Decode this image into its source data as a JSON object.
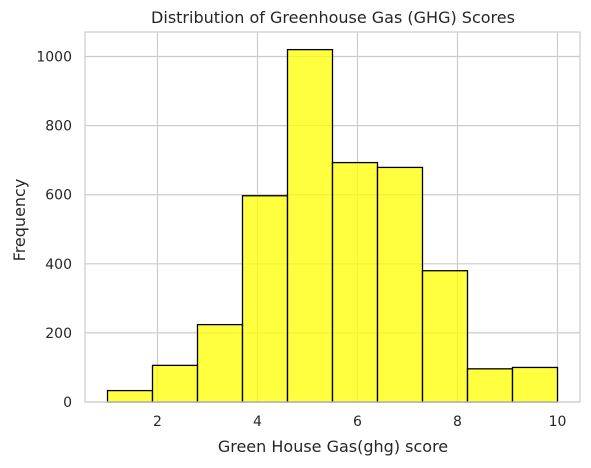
{
  "chart_data": {
    "type": "bar",
    "title": "Distribution of Greenhouse Gas (GHG) Scores",
    "xlabel": "Green House Gas(ghg) score",
    "ylabel": "Frequency",
    "bin_edges": [
      1.0,
      1.9,
      2.8,
      3.7,
      4.6,
      5.5,
      6.4,
      7.3,
      8.2,
      9.1,
      10.0
    ],
    "values": [
      33,
      106,
      224,
      597,
      1020,
      693,
      679,
      380,
      96,
      100
    ],
    "xlim": [
      0.55,
      10.45
    ],
    "ylim": [
      0,
      1071
    ],
    "x_ticks": [
      2,
      4,
      6,
      8,
      10
    ],
    "y_ticks": [
      0,
      200,
      400,
      600,
      800,
      1000
    ],
    "grid": true,
    "bar_color": "#ffff00",
    "bar_alpha": 0.75,
    "bar_edge_color": "#000000",
    "grid_color": "#cccccc",
    "spine_color": "#cccccc"
  }
}
